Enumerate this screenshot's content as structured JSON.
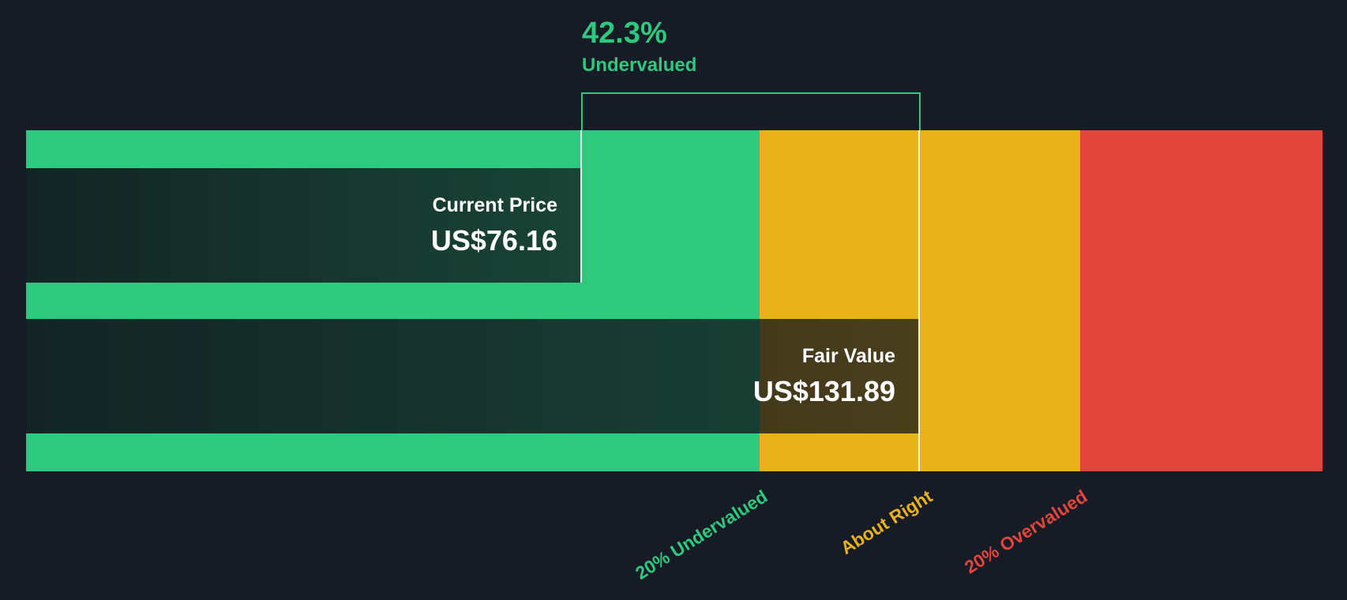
{
  "chart_data": {
    "type": "bar",
    "subtype": "share-price-vs-fair-value",
    "annotation": {
      "percent": 42.3,
      "percent_label": "42.3%",
      "status": "Undervalued"
    },
    "series": [
      {
        "name": "Current Price",
        "label": "Current Price",
        "value": 76.16,
        "display": "US$76.16"
      },
      {
        "name": "Fair Value",
        "label": "Fair Value",
        "value": 131.89,
        "display": "US$131.89"
      }
    ],
    "zones": [
      {
        "label": "20% Undervalued",
        "color": "#2DC97E"
      },
      {
        "label": "About Right",
        "color": "#E9B219"
      },
      {
        "label": "20% Overvalued",
        "color": "#E2453C"
      }
    ],
    "currency": "US$",
    "legend_position": "bottom-rotated"
  },
  "colors": {
    "background": "#161B25",
    "green": "#2DC97E",
    "yellow": "#E9B219",
    "red": "#E2453C",
    "marker": "rgba(255,255,255,0.85)",
    "text": "#FFFFFF"
  }
}
